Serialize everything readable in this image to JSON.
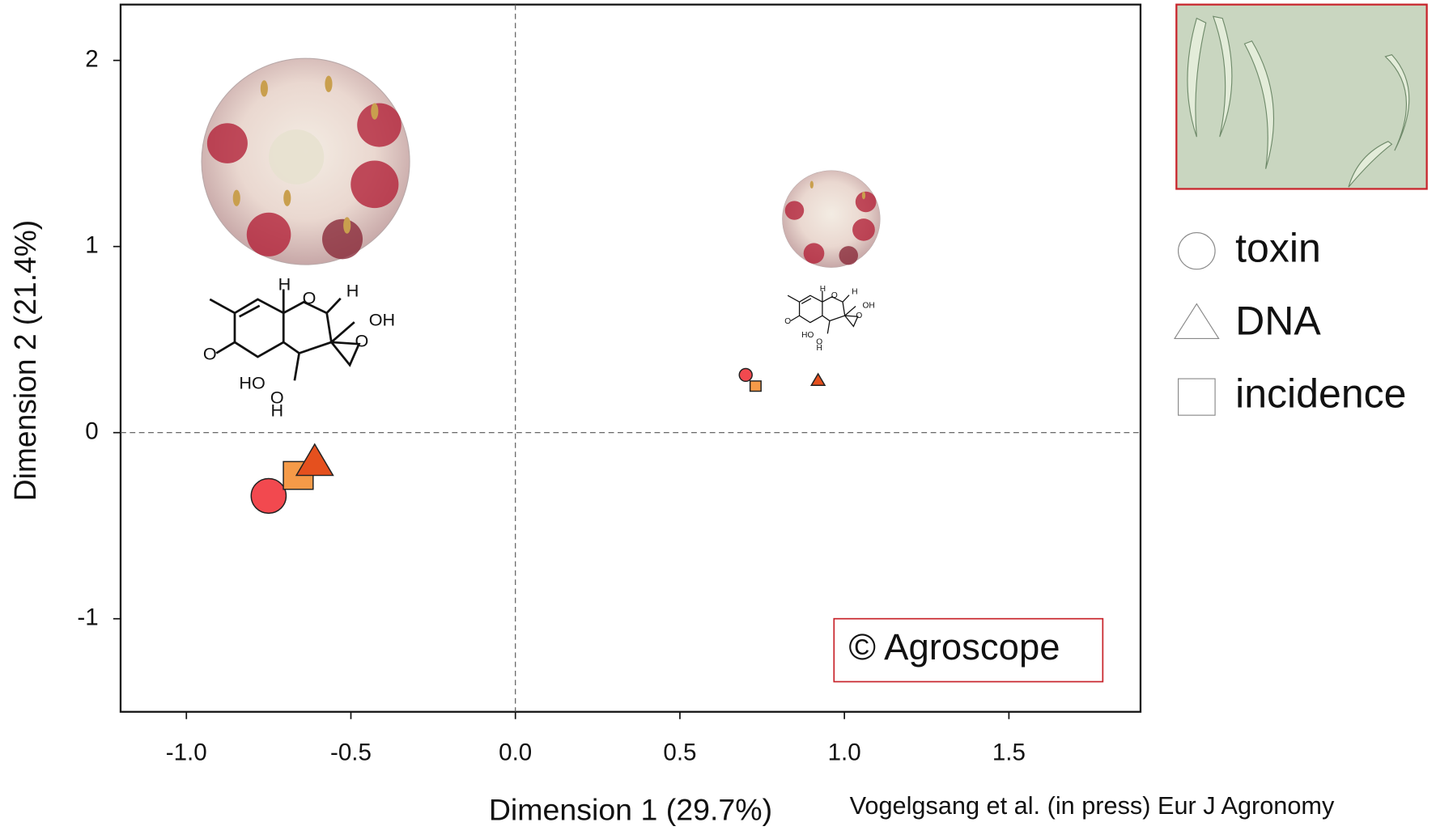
{
  "chart_data": {
    "type": "scatter",
    "xlabel": "Dimension 1 (29.7%)",
    "ylabel": "Dimension 2 (21.4%)",
    "xlim": [
      -1.2,
      1.9
    ],
    "ylim": [
      -1.5,
      2.3
    ],
    "xticks": [
      {
        "value": -1,
        "label": "-1.0"
      },
      -0.5,
      {
        "value": 0,
        "label": "0.0"
      },
      0.5,
      {
        "value": 1,
        "label": "1.0"
      },
      1.5
    ],
    "yticks": [
      -1,
      0,
      1,
      2
    ],
    "reference_x": 0,
    "reference_y": 0,
    "series": [
      {
        "name": "toxin",
        "marker": "circle",
        "color": "#f2494f",
        "x": [
          -0.75,
          0.7
        ],
        "y": [
          -0.34,
          0.31
        ]
      },
      {
        "name": "DNA",
        "marker": "triangle",
        "color": "#e5501e",
        "x": [
          -0.61,
          0.92
        ],
        "y": [
          -0.16,
          0.28
        ]
      },
      {
        "name": "incidence",
        "marker": "square",
        "color": "#f59a48",
        "x": [
          -0.66,
          0.73
        ],
        "y": [
          -0.23,
          0.25
        ]
      }
    ],
    "annotation": "© Agroscope",
    "citation": "Vogelgsang et al. (in press) Eur J Agronomy",
    "structure_labels": [
      "H",
      "O",
      "H",
      "OH",
      "O",
      "O",
      "HO",
      "O",
      "H"
    ]
  }
}
